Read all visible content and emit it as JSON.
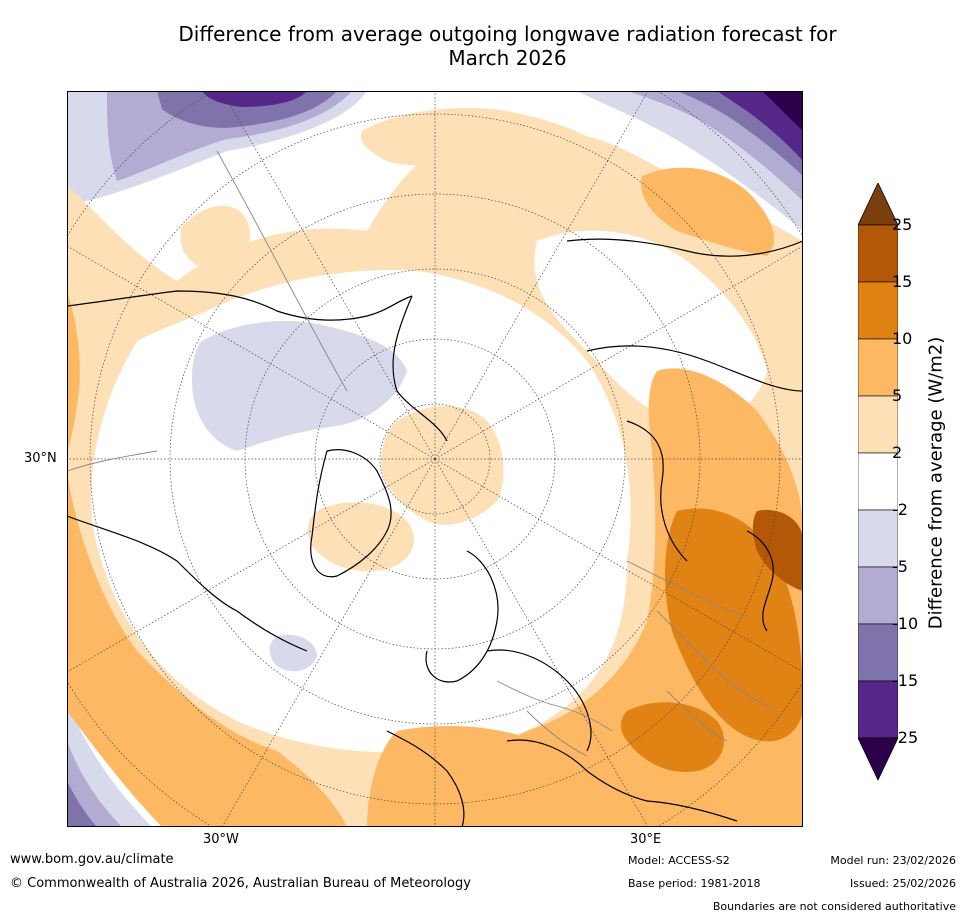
{
  "title_line1": "Difference from average outgoing longwave radiation forecast for",
  "title_line2": "March 2026",
  "colorbar": {
    "title": "Difference from average (W/m2)",
    "ticks": [
      "25",
      "15",
      "10",
      "5",
      "2",
      "-2",
      "-5",
      "-10",
      "-15",
      "-25"
    ],
    "colors": {
      "gt25": "#7a3f0c",
      "c15_25": "#b35806",
      "c10_15": "#e08214",
      "c5_10": "#fdb863",
      "c2_5": "#fee0b6",
      "neutral": "#ffffff",
      "n2_5": "#d8daeb",
      "n5_10": "#b2abd2",
      "n10_15": "#8073ac",
      "n15_25": "#542788",
      "lt25": "#2d004b"
    }
  },
  "axes": {
    "lat_label": "30°N",
    "lon_label_west": "30°W",
    "lon_label_east": "30°E"
  },
  "footer": {
    "url": "www.bom.gov.au/climate",
    "copyright": "© Commonwealth of Australia 2026, Australian Bureau of Meteorology",
    "model": "Model: ACCESS-S2",
    "base_period": "Base period: 1981-2018",
    "model_run": "Model run: 23/02/2026",
    "issued": "Issued: 25/02/2026",
    "disclaimer": "Boundaries are not considered authoritative"
  }
}
